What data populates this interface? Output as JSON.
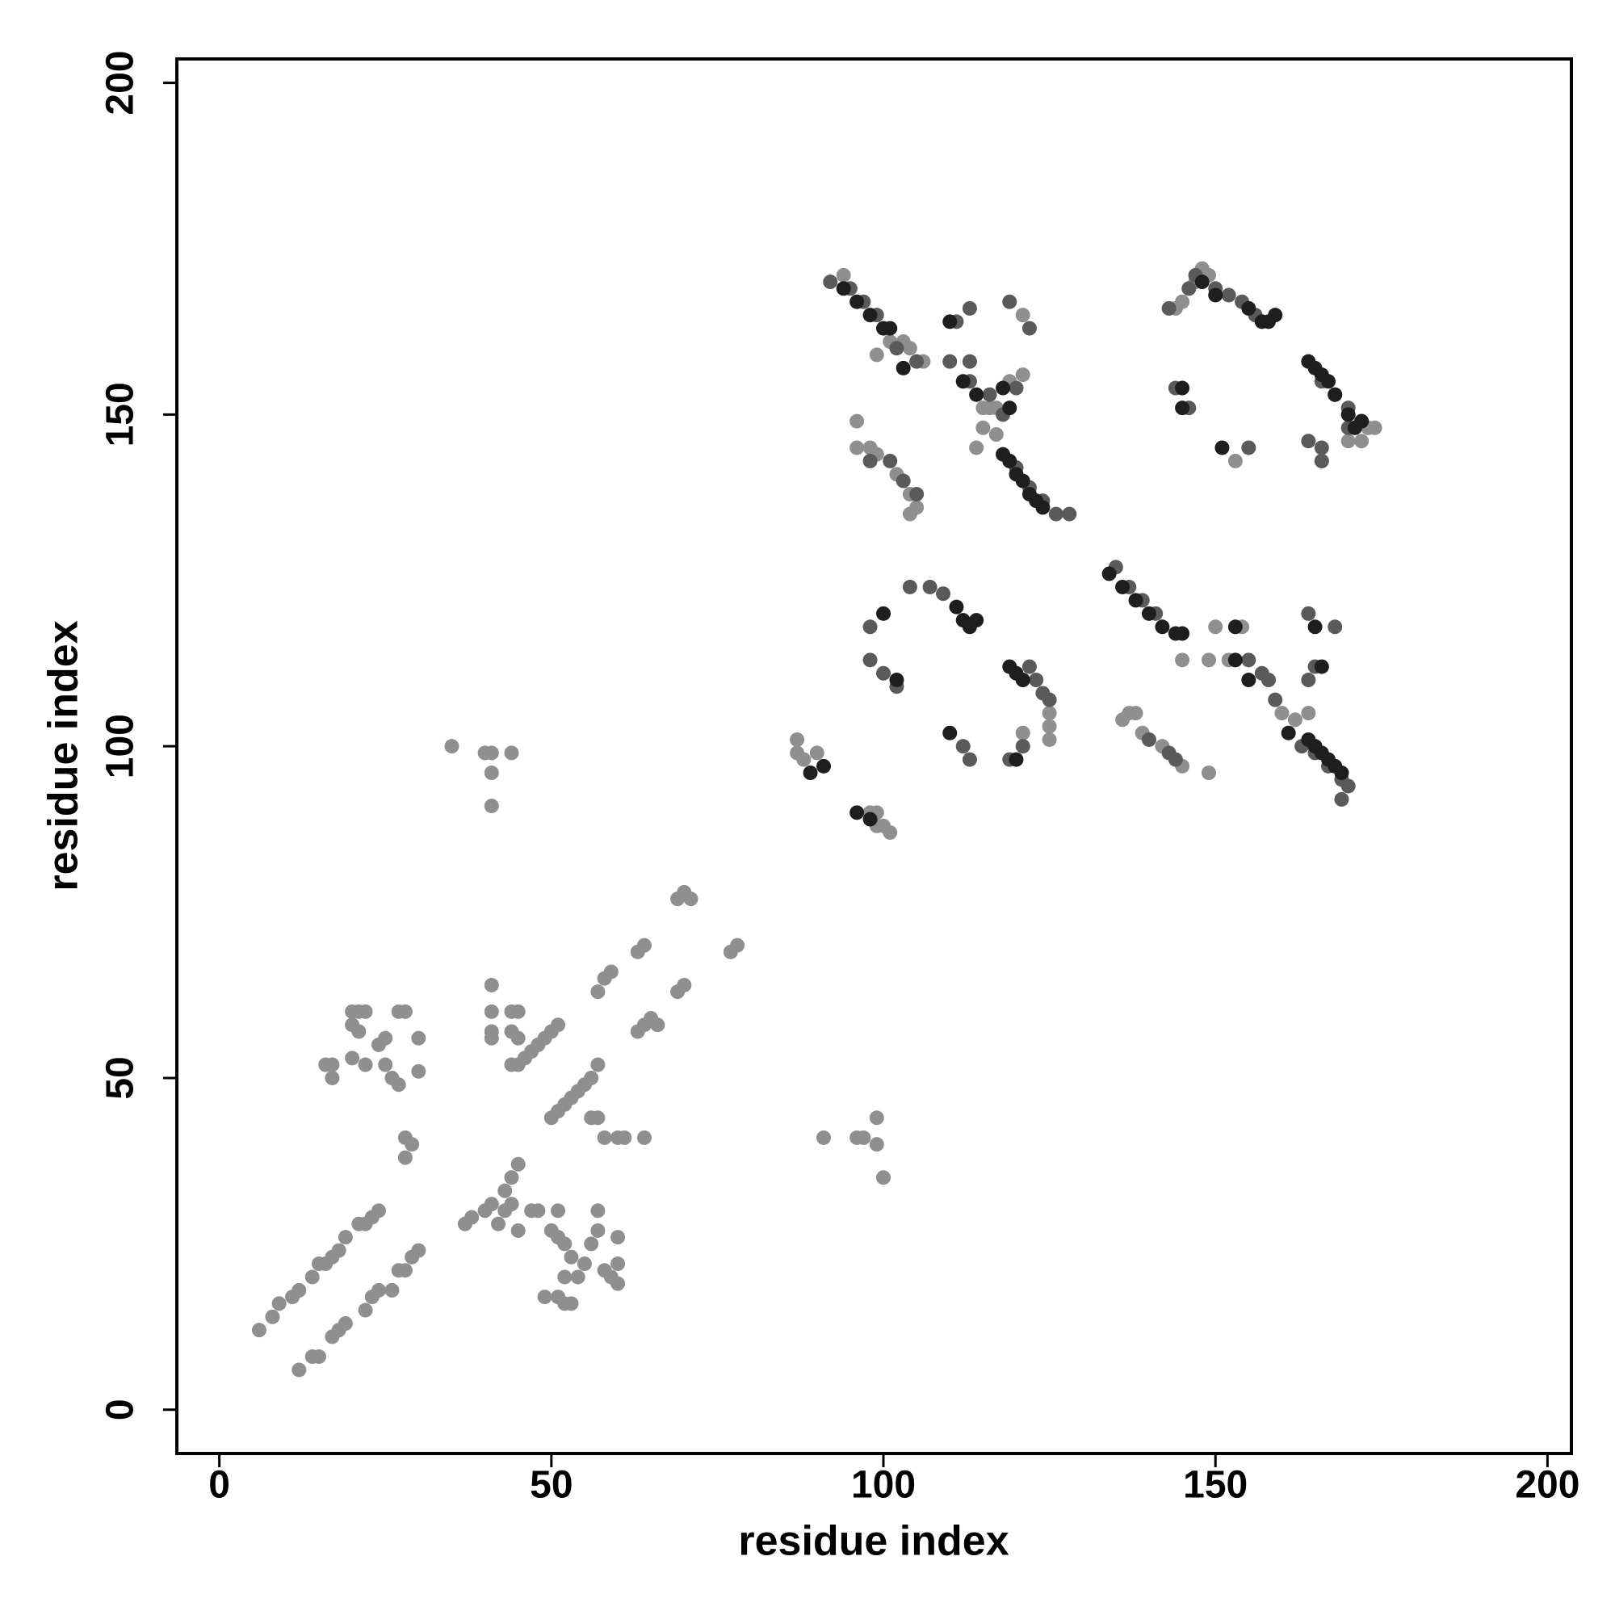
{
  "chart_data": {
    "type": "scatter",
    "x_label": "residue index",
    "y_label": "residue index",
    "xlim": [
      -6.4,
      203.6
    ],
    "ylim": [
      -6.6,
      203.6
    ],
    "xticks": [
      0,
      50,
      100,
      150,
      200
    ],
    "yticks": [
      0,
      50,
      100,
      150,
      200
    ],
    "grid": false,
    "series": [
      {
        "color": "#8f8f8f",
        "x": [
          6,
          8,
          9,
          11,
          12,
          14,
          15,
          16,
          17,
          18,
          19,
          21,
          22,
          23,
          24,
          12,
          14,
          15,
          17,
          18,
          19,
          22,
          23,
          24,
          26,
          27,
          28,
          29,
          30,
          16,
          17,
          17,
          20,
          21,
          22,
          20,
          21,
          20,
          22,
          24,
          25,
          27,
          28,
          30,
          25,
          26,
          27,
          30,
          28,
          29,
          28,
          37,
          38,
          40,
          41,
          42,
          43,
          44,
          43,
          44,
          45,
          45,
          47,
          48,
          50,
          51,
          52,
          53,
          52,
          54,
          51,
          52,
          53,
          49,
          55,
          56,
          57,
          57,
          58,
          59,
          60,
          60,
          60,
          51,
          41,
          41,
          41,
          41,
          44,
          45,
          44,
          45,
          44,
          45,
          46,
          47,
          48,
          49,
          50,
          51,
          50,
          51,
          52,
          53,
          54,
          55,
          56,
          57,
          56,
          57,
          58,
          60,
          61,
          64,
          57,
          58,
          59,
          63,
          64,
          65,
          66,
          63,
          64,
          69,
          70,
          69,
          70,
          71,
          77,
          78,
          35,
          40,
          41,
          44,
          41,
          41,
          91,
          96,
          97,
          99,
          99,
          100,
          87,
          87,
          88,
          90,
          98,
          99,
          99,
          100,
          101,
          94,
          99,
          101,
          103,
          104,
          106,
          115,
          116,
          117,
          119,
          121,
          115,
          117,
          114,
          121,
          96,
          96,
          98,
          99,
          102,
          104,
          105,
          104,
          125,
          125,
          125,
          121,
          136,
          137,
          138,
          139,
          142,
          145,
          149,
          145,
          149,
          150,
          152,
          154,
          160,
          162,
          164,
          144,
          145,
          146,
          147,
          148,
          149,
          153,
          173,
          174,
          170,
          172,
          166
        ],
        "values": [
          12,
          14,
          16,
          17,
          18,
          20,
          22,
          22,
          23,
          24,
          26,
          28,
          28,
          29,
          30,
          6,
          8,
          8,
          11,
          12,
          13,
          15,
          17,
          18,
          18,
          21,
          21,
          23,
          24,
          52,
          52,
          50,
          60,
          60,
          60,
          58,
          57,
          53,
          52,
          55,
          56,
          60,
          60,
          56,
          52,
          50,
          49,
          51,
          41,
          40,
          38,
          28,
          29,
          30,
          31,
          28,
          30,
          31,
          33,
          35,
          37,
          27,
          30,
          30,
          27,
          26,
          25,
          23,
          20,
          20,
          17,
          16,
          16,
          17,
          22,
          25,
          30,
          27,
          21,
          20,
          19,
          22,
          26,
          30,
          64,
          60,
          57,
          56,
          60,
          60,
          57,
          56,
          52,
          52,
          53,
          54,
          55,
          56,
          57,
          58,
          44,
          45,
          46,
          47,
          48,
          49,
          50,
          52,
          44,
          44,
          41,
          41,
          41,
          41,
          63,
          65,
          66,
          57,
          58,
          59,
          58,
          69,
          70,
          63,
          64,
          77,
          78,
          77,
          69,
          70,
          100,
          99,
          99,
          99,
          96,
          91,
          41,
          41,
          41,
          44,
          40,
          35,
          101,
          99,
          98,
          99,
          90,
          90,
          88,
          88,
          87,
          171,
          159,
          161,
          161,
          160,
          158,
          151,
          151,
          151,
          155,
          156,
          148,
          147,
          145,
          165,
          149,
          145,
          145,
          144,
          141,
          138,
          136,
          135,
          105,
          103,
          101,
          102,
          104,
          105,
          105,
          102,
          100,
          97,
          96,
          113,
          113,
          118,
          113,
          118,
          105,
          104,
          105,
          166,
          167,
          169,
          170,
          172,
          171,
          143,
          148,
          148,
          146,
          146,
          143
        ]
      },
      {
        "color": "#5a5a5a",
        "x": [
          92,
          95,
          97,
          99,
          102,
          105,
          111,
          113,
          110,
          113,
          113,
          116,
          118,
          119,
          122,
          120,
          98,
          101,
          103,
          105,
          120,
          122,
          124,
          126,
          128,
          135,
          137,
          139,
          141,
          104,
          107,
          109,
          98,
          98,
          100,
          102,
          122,
          123,
          124,
          125,
          112,
          113,
          119,
          121,
          140,
          143,
          144,
          155,
          157,
          158,
          159,
          163,
          165,
          167,
          169,
          170,
          169,
          164,
          168,
          165,
          164,
          146,
          147,
          150,
          152,
          154,
          156,
          143,
          144,
          146,
          166,
          168,
          170,
          172,
          170,
          164,
          166,
          166,
          155
        ],
        "values": [
          170,
          169,
          167,
          165,
          160,
          158,
          164,
          166,
          158,
          158,
          155,
          153,
          150,
          167,
          163,
          154,
          143,
          143,
          140,
          138,
          142,
          139,
          137,
          135,
          135,
          127,
          124,
          122,
          120,
          124,
          124,
          123,
          118,
          113,
          111,
          109,
          112,
          110,
          108,
          107,
          100,
          98,
          98,
          100,
          101,
          99,
          98,
          113,
          111,
          110,
          107,
          100,
          99,
          97,
          95,
          94,
          92,
          120,
          118,
          112,
          110,
          169,
          171,
          169,
          168,
          167,
          165,
          166,
          154,
          151,
          155,
          153,
          151,
          149,
          148,
          146,
          145,
          143,
          145
        ]
      },
      {
        "color": "#1e1e1e",
        "x": [
          94,
          96,
          98,
          100,
          101,
          103,
          110,
          112,
          114,
          118,
          119,
          118,
          119,
          120,
          121,
          122,
          123,
          124,
          134,
          136,
          138,
          140,
          142,
          144,
          145,
          100,
          102,
          111,
          112,
          113,
          114,
          119,
          120,
          121,
          110,
          120,
          153,
          153,
          155,
          161,
          164,
          165,
          166,
          167,
          168,
          169,
          165,
          166,
          148,
          150,
          155,
          157,
          158,
          159,
          145,
          145,
          151,
          164,
          165,
          166,
          167,
          168,
          170,
          172,
          171,
          91,
          89,
          96,
          98
        ],
        "values": [
          169,
          167,
          165,
          163,
          163,
          157,
          164,
          155,
          153,
          154,
          151,
          144,
          143,
          141,
          140,
          138,
          137,
          136,
          126,
          124,
          122,
          120,
          118,
          117,
          117,
          120,
          110,
          121,
          119,
          118,
          119,
          112,
          111,
          110,
          102,
          98,
          118,
          113,
          110,
          102,
          101,
          100,
          99,
          98,
          97,
          96,
          118,
          112,
          170,
          168,
          166,
          164,
          164,
          165,
          151,
          154,
          145,
          158,
          157,
          156,
          155,
          153,
          150,
          149,
          148,
          97,
          96,
          90,
          89
        ]
      }
    ]
  }
}
